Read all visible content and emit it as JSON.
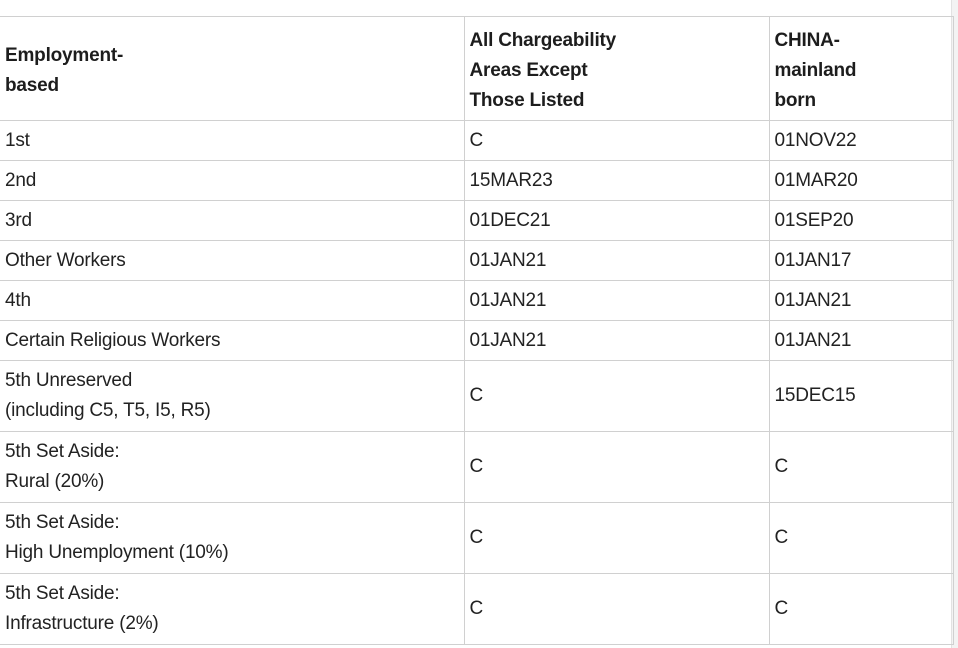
{
  "table": {
    "headers": [
      "Employment-\nbased",
      "All Chargeability\nAreas Except\nThose Listed",
      "CHINA-\nmainland\nborn"
    ],
    "rows": [
      {
        "category": "1st",
        "all_areas": "C",
        "china": "01NOV22"
      },
      {
        "category": "2nd",
        "all_areas": "15MAR23",
        "china": "01MAR20"
      },
      {
        "category": "3rd",
        "all_areas": "01DEC21",
        "china": "01SEP20"
      },
      {
        "category": "Other Workers",
        "all_areas": "01JAN21",
        "china": "01JAN17"
      },
      {
        "category": "4th",
        "all_areas": "01JAN21",
        "china": "01JAN21"
      },
      {
        "category": "Certain Religious Workers",
        "all_areas": "01JAN21",
        "china": "01JAN21"
      },
      {
        "category": "5th Unreserved\n(including C5, T5, I5, R5)",
        "all_areas": "C",
        "china": "15DEC15"
      },
      {
        "category": "5th Set Aside:\nRural (20%)",
        "all_areas": "C",
        "china": "C"
      },
      {
        "category": "5th Set Aside:\nHigh Unemployment (10%)",
        "all_areas": "C",
        "china": "C"
      },
      {
        "category": "5th Set Aside:\nInfrastructure (2%)",
        "all_areas": "C",
        "china": "C"
      }
    ]
  }
}
